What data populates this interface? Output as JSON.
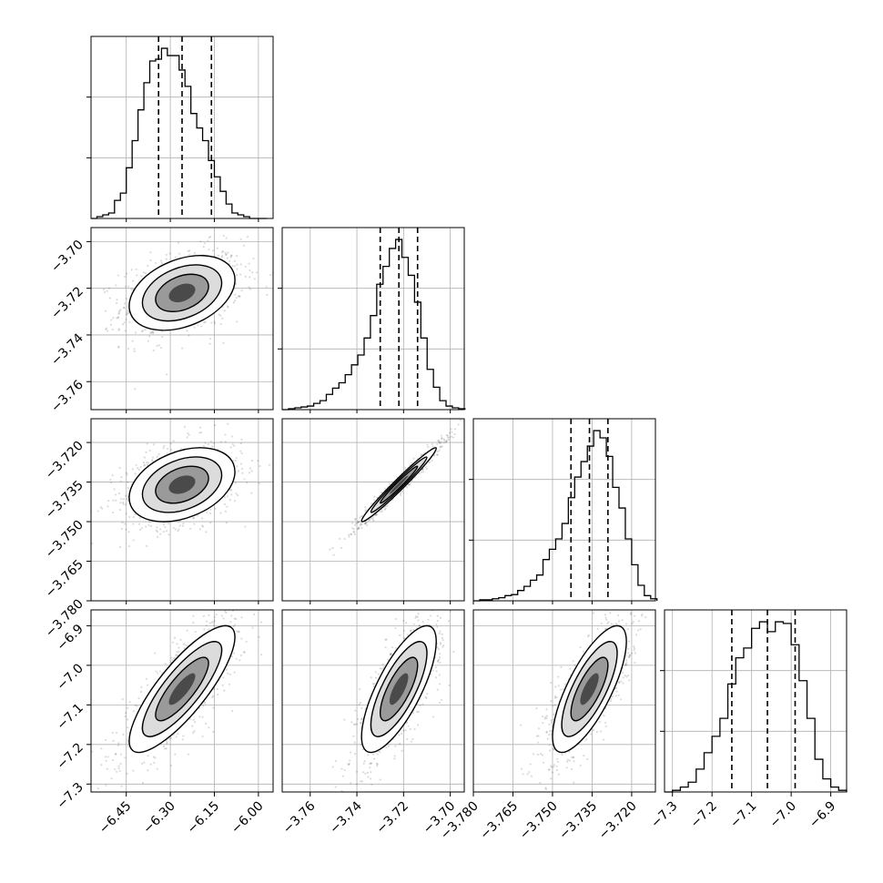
{
  "figure": {
    "type": "corner-plot"
  },
  "chart_data": {
    "type": "corner",
    "title": "",
    "grid": true,
    "quantile_lines": "dashed",
    "parameters": [
      {
        "xlabel": "",
        "range": [
          -6.57,
          -5.95
        ],
        "tick_values": [
          -6.45,
          -6.3,
          -6.15,
          -6.0
        ],
        "tick_labels": [
          "−6.45",
          "−6.30",
          "−6.15",
          "−6.00"
        ],
        "quantiles": [
          -6.34,
          -6.26,
          -6.16
        ],
        "median": -6.26
      },
      {
        "xlabel": "",
        "range": [
          -3.772,
          -3.694
        ],
        "tick_values": [
          -3.76,
          -3.74,
          -3.72,
          -3.7
        ],
        "tick_labels": [
          "−3.76",
          "−3.74",
          "−3.72",
          "−3.70"
        ],
        "quantiles": [
          -3.73,
          -3.722,
          -3.714
        ],
        "median": -3.722
      },
      {
        "xlabel": "",
        "range": [
          -3.78,
          -3.711
        ],
        "tick_values": [
          -3.78,
          -3.765,
          -3.75,
          -3.735,
          -3.72
        ],
        "tick_labels": [
          "−3.780",
          "−3.765",
          "−3.750",
          "−3.735",
          "−3.720"
        ],
        "quantiles": [
          -3.743,
          -3.736,
          -3.729
        ],
        "median": -3.736
      },
      {
        "xlabel": "",
        "range": [
          -7.32,
          -6.86
        ],
        "tick_values": [
          -7.3,
          -7.2,
          -7.1,
          -7.0,
          -6.9
        ],
        "tick_labels": [
          "−7.3",
          "−7.2",
          "−7.1",
          "−7.0",
          "−6.9"
        ],
        "quantiles": [
          -7.15,
          -7.06,
          -6.99
        ],
        "median": -7.06
      }
    ],
    "histograms": [
      {
        "param": 0,
        "bin_edges": [
          -6.57,
          -6.55,
          -6.53,
          -6.51,
          -6.49,
          -6.47,
          -6.45,
          -6.43,
          -6.41,
          -6.39,
          -6.37,
          -6.35,
          -6.33,
          -6.31,
          -6.29,
          -6.27,
          -6.25,
          -6.23,
          -6.21,
          -6.19,
          -6.17,
          -6.15,
          -6.13,
          -6.11,
          -6.09,
          -6.07,
          -6.05,
          -6.03,
          -6.01,
          -5.99,
          -5.97
        ],
        "counts": [
          0,
          1,
          2,
          3,
          10,
          14,
          28,
          43,
          60,
          75,
          87,
          88,
          94,
          90,
          90,
          82,
          73,
          58,
          50,
          43,
          32,
          23,
          15,
          8,
          3,
          2,
          1,
          0,
          0,
          0
        ]
      },
      {
        "param": 1,
        "bin_edges": [
          -3.772,
          -3.7693,
          -3.7666,
          -3.7639,
          -3.7612,
          -3.7585,
          -3.7558,
          -3.7531,
          -3.7504,
          -3.7477,
          -3.745,
          -3.7423,
          -3.7396,
          -3.7369,
          -3.7342,
          -3.7315,
          -3.7288,
          -3.7261,
          -3.7234,
          -3.7207,
          -3.718,
          -3.7153,
          -3.7126,
          -3.7099,
          -3.7072,
          -3.7045,
          -3.7018,
          -3.6991,
          -3.6964,
          -3.6937
        ],
        "counts": [
          0,
          1,
          2,
          3,
          4,
          7,
          10,
          17,
          24,
          30,
          39,
          50,
          61,
          80,
          105,
          140,
          160,
          180,
          190,
          170,
          150,
          120,
          80,
          45,
          25,
          10,
          4,
          2,
          1
        ]
      },
      {
        "param": 2,
        "bin_edges": [
          -3.78,
          -3.7776,
          -3.7752,
          -3.7728,
          -3.7704,
          -3.768,
          -3.7656,
          -3.7632,
          -3.7608,
          -3.7584,
          -3.756,
          -3.7536,
          -3.7512,
          -3.7488,
          -3.7464,
          -3.744,
          -3.7416,
          -3.7392,
          -3.7368,
          -3.7344,
          -3.732,
          -3.7296,
          -3.7272,
          -3.7248,
          -3.7224,
          -3.72,
          -3.7176,
          -3.7152,
          -3.7128,
          -3.7104
        ],
        "counts": [
          0,
          1,
          1,
          2,
          3,
          5,
          6,
          10,
          14,
          20,
          25,
          40,
          50,
          60,
          75,
          100,
          120,
          135,
          150,
          165,
          158,
          140,
          110,
          90,
          60,
          35,
          15,
          5,
          2
        ]
      },
      {
        "param": 3,
        "bin_edges": [
          -7.32,
          -7.3,
          -7.28,
          -7.26,
          -7.24,
          -7.22,
          -7.2,
          -7.18,
          -7.16,
          -7.14,
          -7.12,
          -7.1,
          -7.08,
          -7.06,
          -7.04,
          -7.02,
          -7.0,
          -6.98,
          -6.96,
          -6.94,
          -6.92,
          -6.9,
          -6.88,
          -6.86
        ],
        "counts": [
          0,
          1,
          3,
          6,
          14,
          24,
          34,
          45,
          66,
          82,
          88,
          100,
          104,
          98,
          104,
          103,
          90,
          68,
          45,
          20,
          8,
          3,
          1
        ]
      }
    ],
    "pairs": [
      {
        "x_param": 0,
        "y_param": 1,
        "correlation": 0.35
      },
      {
        "x_param": 0,
        "y_param": 2,
        "correlation": 0.35
      },
      {
        "x_param": 1,
        "y_param": 2,
        "correlation": 0.98
      },
      {
        "x_param": 0,
        "y_param": 3,
        "correlation": 0.82
      },
      {
        "x_param": 1,
        "y_param": 3,
        "correlation": 0.75
      },
      {
        "x_param": 2,
        "y_param": 3,
        "correlation": 0.75
      }
    ],
    "colors": {
      "line": "#000000",
      "grid": "#b0b0b0",
      "density": "#000000",
      "background": "#ffffff"
    }
  }
}
